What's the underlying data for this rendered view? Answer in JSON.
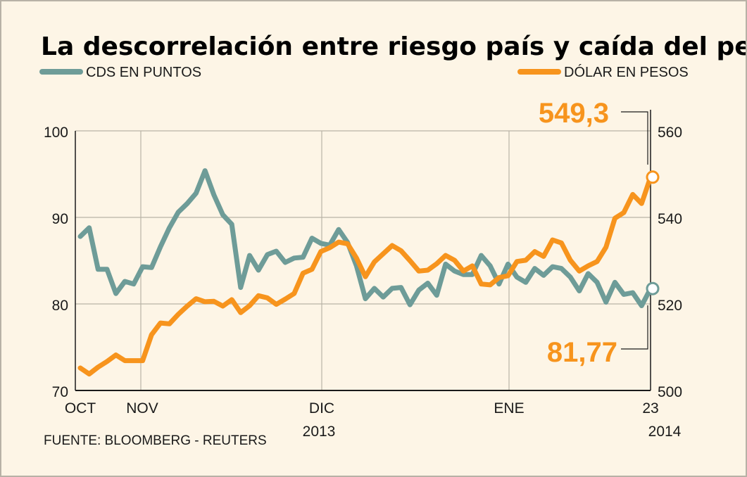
{
  "chart_data": {
    "type": "line",
    "title": "La descorrelación entre  riesgo país y caída del peso",
    "source": "FUENTE: BLOOMBERG - REUTERS",
    "x_ticks": [
      "OCT",
      "NOV",
      "DIC",
      "ENE",
      "23"
    ],
    "x_year_labels": [
      "2013",
      "2014"
    ],
    "left_axis": {
      "ticks": [
        "100",
        "90",
        "80",
        "70"
      ],
      "range": [
        70,
        100
      ]
    },
    "right_axis": {
      "ticks": [
        "560",
        "540",
        "520",
        "500"
      ],
      "range": [
        500,
        560
      ]
    },
    "grid": true,
    "legend_placement": "top",
    "series": [
      {
        "name": "CDS EN PUNTOS",
        "axis": "left",
        "color": "#6e9c98",
        "end_label": "81,77",
        "values": [
          87.8,
          88.8,
          84.0,
          84.0,
          81.2,
          82.6,
          82.3,
          84.3,
          84.2,
          86.6,
          88.8,
          90.6,
          91.6,
          92.8,
          95.4,
          92.6,
          90.3,
          89.2,
          81.9,
          85.6,
          83.9,
          85.7,
          86.1,
          84.8,
          85.3,
          85.4,
          87.6,
          87.0,
          86.8,
          88.6,
          87.1,
          84.4,
          80.6,
          81.8,
          80.8,
          81.8,
          81.9,
          79.9,
          81.6,
          82.4,
          81.0,
          84.6,
          83.8,
          83.4,
          83.4,
          85.6,
          84.4,
          82.3,
          84.6,
          83.1,
          82.5,
          84.1,
          83.3,
          84.3,
          84.1,
          83.1,
          81.5,
          83.5,
          82.5,
          80.2,
          82.5,
          81.1,
          81.3,
          79.8,
          81.77
        ]
      },
      {
        "name": "DÓLAR EN PESOS",
        "axis": "right",
        "color": "#f7941d",
        "end_label": "549,3",
        "values": [
          505.2,
          503.8,
          505.4,
          506.7,
          508.2,
          506.9,
          506.9,
          506.9,
          512.9,
          515.6,
          515.4,
          517.6,
          519.5,
          521.2,
          520.5,
          520.6,
          519.5,
          521.0,
          518.0,
          519.6,
          521.9,
          521.4,
          519.9,
          521.1,
          522.4,
          527.1,
          528.0,
          532.1,
          533.0,
          534.3,
          533.9,
          530.6,
          526.3,
          529.7,
          531.6,
          533.5,
          532.3,
          530.0,
          527.6,
          527.8,
          529.3,
          531.2,
          530.1,
          527.6,
          528.8,
          524.6,
          524.4,
          526.1,
          526.5,
          529.8,
          530.1,
          532.1,
          531.0,
          534.8,
          534.1,
          530.1,
          527.6,
          528.8,
          529.8,
          533.1,
          539.8,
          541.1,
          545.3,
          543.2,
          549.3
        ]
      }
    ]
  }
}
